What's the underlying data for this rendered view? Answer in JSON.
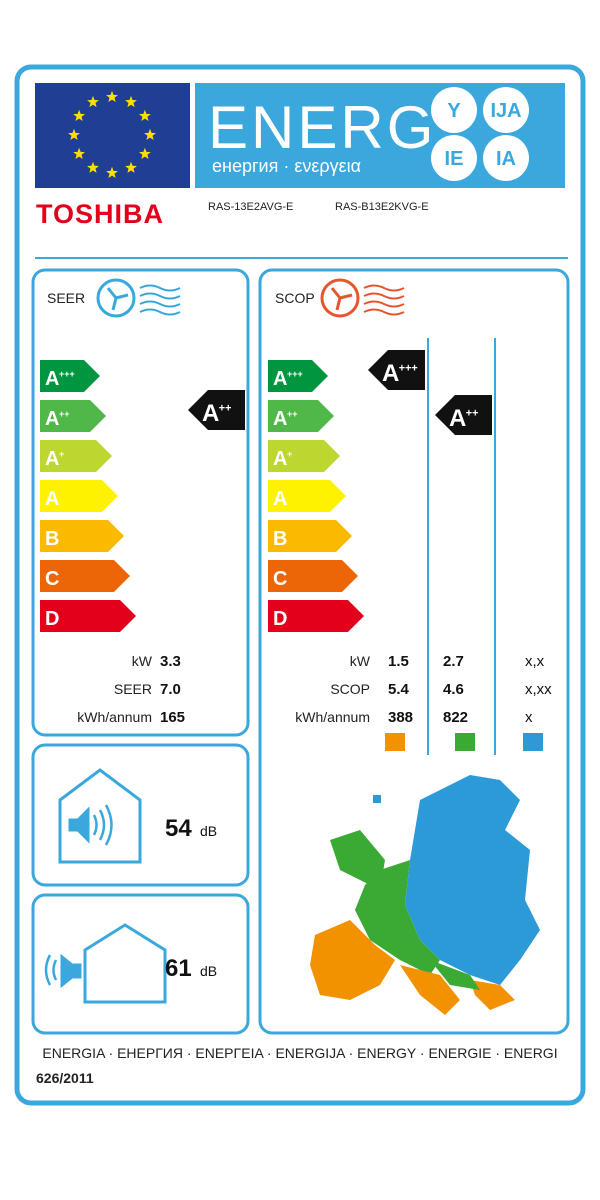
{
  "header": {
    "energy_word": "ENERG",
    "subtitle": "енергия · ενεργεια",
    "suffixes": [
      "Y",
      "IJA",
      "IE",
      "IA"
    ]
  },
  "brand": "TOSHIBA",
  "models": [
    "RAS-13E2AVG-E",
    "RAS-B13E2KVG-E"
  ],
  "seer_panel": {
    "title": "SEER",
    "classes": [
      {
        "letter": "A",
        "sup": "+++"
      },
      {
        "letter": "A",
        "sup": "++"
      },
      {
        "letter": "A",
        "sup": "+"
      },
      {
        "letter": "A"
      },
      {
        "letter": "B"
      },
      {
        "letter": "C"
      },
      {
        "letter": "D"
      }
    ],
    "rating": {
      "letter": "A",
      "sup": "++"
    },
    "rows": [
      {
        "label": "kW",
        "value": "3.3"
      },
      {
        "label": "SEER",
        "value": "7.0"
      },
      {
        "label": "kWh/annum",
        "value": "165"
      }
    ]
  },
  "scop_panel": {
    "title": "SCOP",
    "classes": [
      {
        "letter": "A",
        "sup": "+++"
      },
      {
        "letter": "A",
        "sup": "++"
      },
      {
        "letter": "A",
        "sup": "+"
      },
      {
        "letter": "A"
      },
      {
        "letter": "B"
      },
      {
        "letter": "C"
      },
      {
        "letter": "D"
      }
    ],
    "ratings": [
      {
        "letter": "A",
        "sup": "+++"
      },
      {
        "letter": "A",
        "sup": "++"
      }
    ],
    "rows": [
      {
        "label": "kW",
        "values": [
          "1.5",
          "2.7",
          "x,x"
        ]
      },
      {
        "label": "SCOP",
        "values": [
          "5.4",
          "4.6",
          "x,xx"
        ]
      },
      {
        "label": "kWh/annum",
        "values": [
          "388",
          "822",
          "x"
        ]
      }
    ]
  },
  "noise": [
    {
      "value": "54",
      "unit": "dB"
    },
    {
      "value": "61",
      "unit": "dB"
    }
  ],
  "footer": {
    "languages": "ENERGIA · ЕНЕРГИЯ · ΕΝΕΡΓΕΙΑ · ENERGIJA · ENERGY · ENERGIE · ENERGI",
    "regulation": "626/2011"
  }
}
